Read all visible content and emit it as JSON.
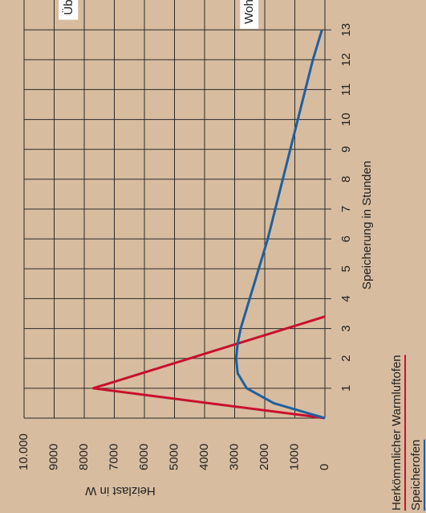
{
  "chart_data": {
    "type": "line",
    "x_label": "Speicherung in Stunden",
    "y_label": "Heizlast in W",
    "xlim": [
      0,
      14
    ],
    "ylim": [
      0,
      10000
    ],
    "xticks": [
      1,
      2,
      3,
      4,
      5,
      6,
      7,
      8,
      9,
      10,
      11,
      12,
      13
    ],
    "yticks": [
      0,
      1000,
      2000,
      3000,
      4000,
      5000,
      6000,
      7000,
      8000,
      9000,
      {
        "value": 10000,
        "label": "10.000"
      }
    ],
    "grid": true,
    "annotations": [
      {
        "text": "Überhitzungsbereich",
        "x": 13.5,
        "y": 8500
      },
      {
        "text": "Wohlfühlbereich",
        "x": 13.2,
        "y": 2500
      }
    ],
    "series": [
      {
        "name": "Herkömmlicher Warmluftofen",
        "color": "#c8102e",
        "x": [
          0,
          1,
          3.4
        ],
        "values": [
          0,
          7700,
          0
        ]
      },
      {
        "name": "Speicherofen",
        "color": "#1f5fa0",
        "x": [
          0,
          0.5,
          1,
          1.5,
          2,
          2.5,
          3,
          4,
          5,
          6,
          7,
          8,
          9,
          10,
          11,
          12,
          13
        ],
        "values": [
          0,
          1700,
          2600,
          2900,
          2950,
          2900,
          2800,
          2500,
          2200,
          1900,
          1650,
          1400,
          1150,
          900,
          650,
          400,
          100
        ]
      }
    ]
  }
}
